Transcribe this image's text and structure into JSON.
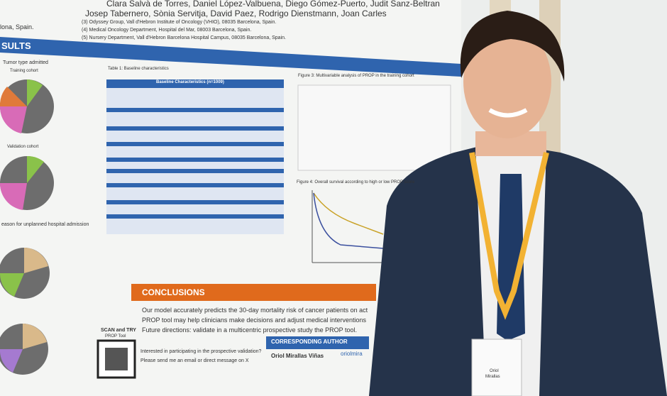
{
  "poster": {
    "authors_line1": "Clara Salvà de Torres, Daniel López-Valbuena, Diego Gómez-Puerto, Judit Sanz-Beltran",
    "authors_line2": "Josep Tabernero, Sònia Servitja, David Paez, Rodrigo Dienstmann, Joan Carles",
    "affiliation_3": "(3) Odyssey Group, Vall d'Hebron Institute of Oncology (VHIO), 08035 Barcelona, Spain.",
    "affiliation_4": "(4) Medical Oncology Department, Hospital del Mar, 08003 Barcelona, Spain.",
    "affiliation_5": "(5) Nursery Department, Vall d'Hebron Barcelona Hospital Campus, 08035 Barcelona, Spain.",
    "left_fragment": "lona, Spain.",
    "results_heading": "SULTS",
    "tumor_type": "Tumor type admitted",
    "training_cohort": "Training cohort",
    "validation_cohort": "Validation cohort",
    "admission_reason": "eason for unplanned hospital admission",
    "table_caption": "Table 1: Baseline characteristics",
    "table_title": "Baseline Characteristics (n=1009)",
    "figure3_caption": "Figure 3: Multivariable analysis of PROP in the training cohort",
    "figure4_caption": "Figure 4: Overall survival according to high or low PROP score",
    "conclusions_heading": "CONCLUSIONS",
    "conclusion_1": "Our model accurately predicts the 30-day mortality risk of cancer patients on act",
    "conclusion_2": "PROP tool may help clinicians make decisions and adjust medical interventions",
    "conclusion_3": "Future directions: validate in a multicentric prospective study the PROP tool.",
    "scan_try": "SCAN and TRY",
    "prop_tool": "PROP Tool",
    "invitation_1": "Interested in participating in the prospective validation?",
    "invitation_2": "Please send me an email or direct message on X",
    "corresponding_heading": "CORRESPONDING AUTHOR",
    "corresponding_name": "Oriol Mirallas Viñas",
    "handle": "oriolmira"
  },
  "badge": {
    "name_1": "Oriol",
    "name_2": "Mirallas"
  }
}
